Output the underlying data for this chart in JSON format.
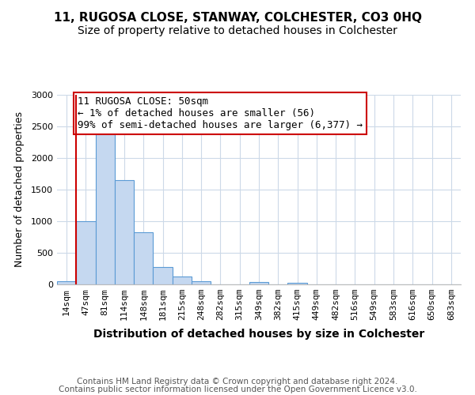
{
  "title": "11, RUGOSA CLOSE, STANWAY, COLCHESTER, CO3 0HQ",
  "subtitle": "Size of property relative to detached houses in Colchester",
  "xlabel": "Distribution of detached houses by size in Colchester",
  "ylabel": "Number of detached properties",
  "bar_labels": [
    "14sqm",
    "47sqm",
    "81sqm",
    "114sqm",
    "148sqm",
    "181sqm",
    "215sqm",
    "248sqm",
    "282sqm",
    "315sqm",
    "349sqm",
    "382sqm",
    "415sqm",
    "449sqm",
    "482sqm",
    "516sqm",
    "549sqm",
    "583sqm",
    "616sqm",
    "650sqm",
    "683sqm"
  ],
  "bar_values": [
    55,
    1000,
    2450,
    1650,
    830,
    270,
    130,
    50,
    0,
    0,
    35,
    0,
    20,
    0,
    0,
    0,
    0,
    0,
    0,
    0,
    0
  ],
  "bar_color": "#c5d8f0",
  "bar_edge_color": "#5b9bd5",
  "annotation_line1": "11 RUGOSA CLOSE: 50sqm",
  "annotation_line2": "← 1% of detached houses are smaller (56)",
  "annotation_line3": "99% of semi-detached houses are larger (6,377) →",
  "annotation_box_color": "#ffffff",
  "annotation_box_edge_color": "#cc0000",
  "red_line_x": 0.5,
  "ylim": [
    0,
    3000
  ],
  "yticks": [
    0,
    500,
    1000,
    1500,
    2000,
    2500,
    3000
  ],
  "footer_line1": "Contains HM Land Registry data © Crown copyright and database right 2024.",
  "footer_line2": "Contains public sector information licensed under the Open Government Licence v3.0.",
  "bg_color": "#ffffff",
  "grid_color": "#ccd9e8",
  "title_fontsize": 11,
  "subtitle_fontsize": 10,
  "xlabel_fontsize": 10,
  "ylabel_fontsize": 9,
  "tick_fontsize": 8,
  "annotation_fontsize": 9,
  "footer_fontsize": 7.5
}
